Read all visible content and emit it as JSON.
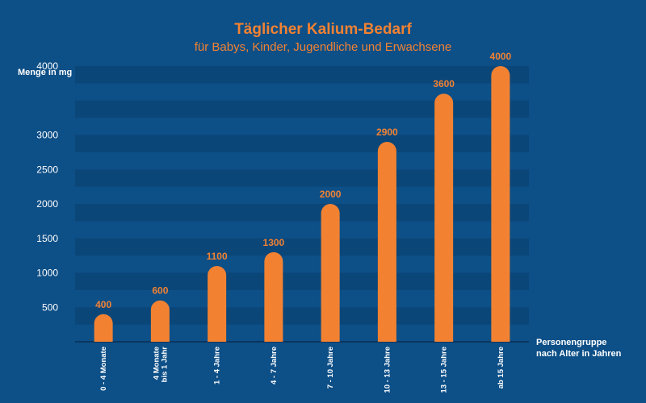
{
  "chart_data": {
    "type": "bar",
    "title": "Täglicher Kalium-Bedarf",
    "subtitle": "für Babys, Kinder, Jugendliche und Erwachsene",
    "ylabel": "Menge in mg",
    "xlabel": [
      "Personengruppe",
      "nach Alter in Jahren"
    ],
    "categories": [
      [
        "0 - 4 Monate"
      ],
      [
        "4 Monate",
        "bis 1 Jahr"
      ],
      [
        "1 - 4 Jahre"
      ],
      [
        "4 - 7 Jahre"
      ],
      [
        "7 - 10 Jahre"
      ],
      [
        "10 - 13 Jahre"
      ],
      [
        "13 - 15 Jahre"
      ],
      [
        "ab 15 Jahre"
      ]
    ],
    "values": [
      400,
      600,
      1100,
      1300,
      2000,
      2900,
      3600,
      4000
    ],
    "yticks": [
      500,
      1000,
      1500,
      2000,
      2500,
      3000,
      4000
    ],
    "ylim": [
      0,
      4000
    ],
    "grid": "alternating bands",
    "colors": {
      "background": "#0d4f87",
      "band": "#0b4678",
      "bar": "#f28232",
      "title": "#f28232",
      "text": "#ffffff",
      "axis": "#0a2f52"
    }
  }
}
